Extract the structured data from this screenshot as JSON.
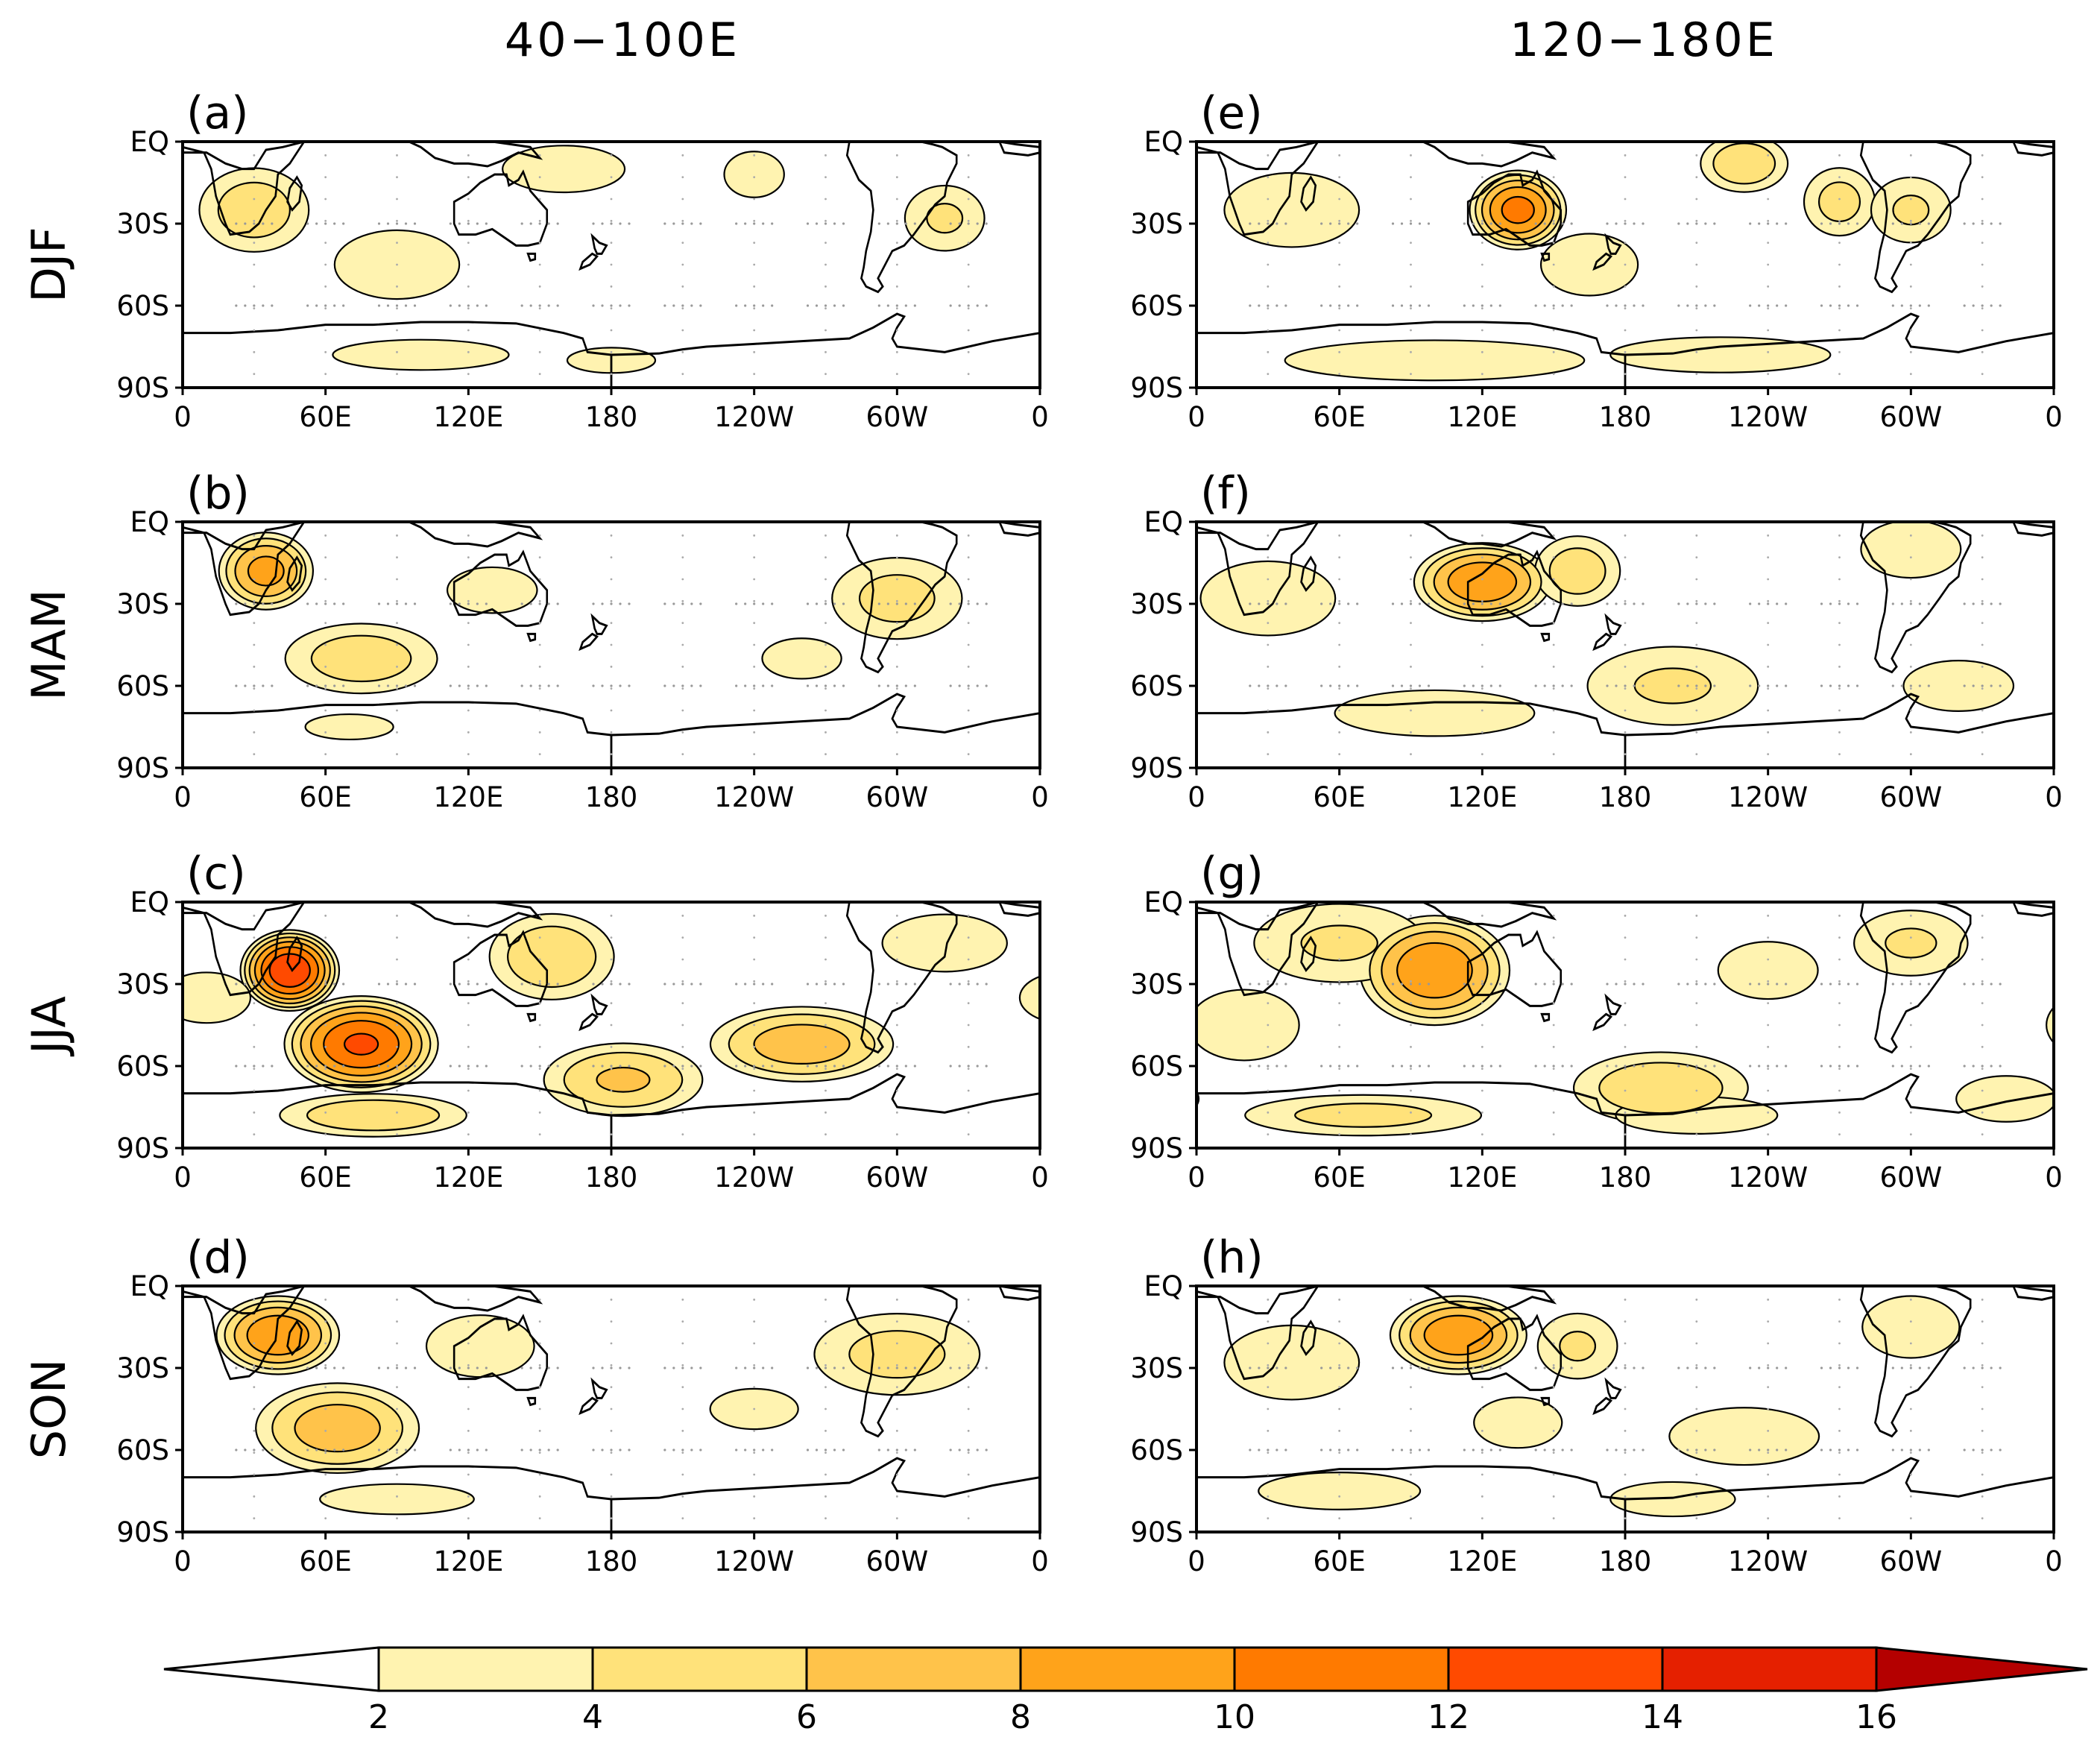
{
  "columns": [
    {
      "title": "40−100E",
      "panels": [
        "(a)",
        "(b)",
        "(c)",
        "(d)"
      ]
    },
    {
      "title": "120−180E",
      "panels": [
        "(e)",
        "(f)",
        "(g)",
        "(h)"
      ]
    }
  ],
  "seasons": [
    "DJF",
    "MAM",
    "JJA",
    "SON"
  ],
  "lat_ticks": [
    "EQ",
    "30S",
    "60S",
    "90S"
  ],
  "lon_ticks": [
    "0",
    "60E",
    "120E",
    "180",
    "120W",
    "60W",
    "0"
  ],
  "colorbar": {
    "ticks": [
      "2",
      "4",
      "6",
      "8",
      "10",
      "12",
      "14",
      "16"
    ],
    "colors": [
      "#ffffff",
      "#fff3b0",
      "#ffe27a",
      "#ffc34a",
      "#ffa31a",
      "#ff7a00",
      "#ff4a00",
      "#e52000",
      "#b40000"
    ]
  },
  "blobs": {
    "a": [
      [
        30,
        -25,
        18,
        12,
        5.5
      ],
      [
        90,
        -45,
        25,
        12,
        3.5
      ],
      [
        -40,
        -28,
        14,
        10,
        4.5
      ],
      [
        100,
        -78,
        40,
        6,
        3
      ],
      [
        -120,
        -12,
        12,
        8,
        3.5
      ],
      [
        160,
        -10,
        30,
        10,
        2.8
      ],
      [
        180,
        -80,
        20,
        5,
        3
      ]
    ],
    "b": [
      [
        35,
        -18,
        14,
        10,
        9
      ],
      [
        75,
        -50,
        25,
        10,
        5.5
      ],
      [
        -60,
        -28,
        22,
        12,
        5
      ],
      [
        130,
        -25,
        18,
        8,
        3.5
      ],
      [
        -100,
        -50,
        18,
        8,
        3
      ],
      [
        70,
        -75,
        20,
        5,
        3
      ]
    ],
    "c": [
      [
        45,
        -25,
        14,
        10,
        14
      ],
      [
        75,
        -52,
        22,
        12,
        12.5
      ],
      [
        155,
        -20,
        20,
        12,
        6
      ],
      [
        -100,
        -52,
        28,
        10,
        7.5
      ],
      [
        -175,
        -65,
        25,
        10,
        6.5
      ],
      [
        80,
        -78,
        30,
        6,
        6
      ],
      [
        -40,
        -15,
        25,
        10,
        3.5
      ],
      [
        10,
        -35,
        20,
        10,
        3
      ]
    ],
    "d": [
      [
        40,
        -18,
        18,
        10,
        10
      ],
      [
        65,
        -52,
        25,
        12,
        7.5
      ],
      [
        -60,
        -25,
        28,
        12,
        5
      ],
      [
        125,
        -22,
        20,
        10,
        4
      ],
      [
        90,
        -78,
        35,
        6,
        3
      ],
      [
        -120,
        -45,
        20,
        8,
        3
      ]
    ],
    "e": [
      [
        135,
        -25,
        14,
        10,
        11
      ],
      [
        -130,
        -8,
        14,
        8,
        6
      ],
      [
        -90,
        -22,
        12,
        10,
        5
      ],
      [
        -60,
        -25,
        14,
        10,
        4.5
      ],
      [
        40,
        -25,
        25,
        12,
        4
      ],
      [
        165,
        -45,
        18,
        10,
        4
      ],
      [
        100,
        -80,
        60,
        7,
        3.5
      ],
      [
        -140,
        -78,
        50,
        7,
        3
      ]
    ],
    "f": [
      [
        120,
        -22,
        20,
        10,
        10
      ],
      [
        160,
        -18,
        14,
        10,
        5.5
      ],
      [
        30,
        -28,
        25,
        12,
        4
      ],
      [
        -160,
        -60,
        30,
        12,
        4.5
      ],
      [
        100,
        -70,
        40,
        8,
        3.5
      ],
      [
        -60,
        -10,
        20,
        10,
        3.5
      ],
      [
        -40,
        -60,
        25,
        10,
        3
      ]
    ],
    "g": [
      [
        100,
        -25,
        22,
        14,
        10
      ],
      [
        60,
        -15,
        30,
        12,
        4.5
      ],
      [
        -165,
        -68,
        28,
        10,
        6
      ],
      [
        -60,
        -15,
        20,
        10,
        4.5
      ],
      [
        -120,
        -25,
        20,
        10,
        3.5
      ],
      [
        70,
        -78,
        40,
        6,
        5
      ],
      [
        -150,
        -78,
        30,
        6,
        4
      ],
      [
        -20,
        -72,
        20,
        8,
        3.5
      ],
      [
        20,
        -45,
        25,
        14,
        3
      ]
    ],
    "h": [
      [
        110,
        -18,
        20,
        10,
        10
      ],
      [
        160,
        -22,
        14,
        10,
        4.5
      ],
      [
        40,
        -28,
        25,
        12,
        4
      ],
      [
        -60,
        -15,
        18,
        10,
        4
      ],
      [
        -130,
        -55,
        30,
        10,
        3.5
      ],
      [
        60,
        -75,
        30,
        6,
        4
      ],
      [
        -160,
        -78,
        25,
        6,
        3.5
      ],
      [
        135,
        -50,
        20,
        10,
        3
      ]
    ]
  }
}
